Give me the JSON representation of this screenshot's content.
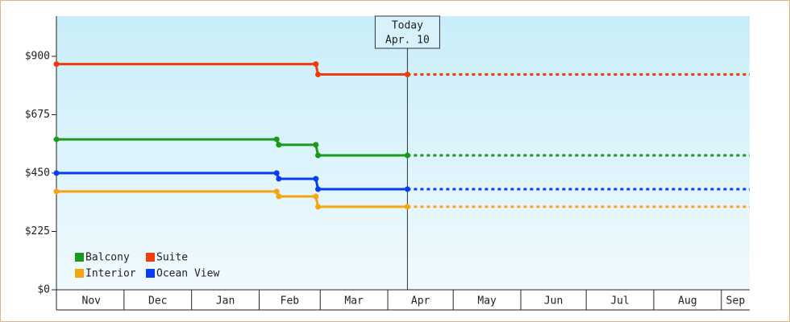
{
  "chart_data": {
    "type": "step-line",
    "x": [
      -1,
      100,
      101,
      118,
      119,
      160,
      317
    ],
    "xlim": [
      -1,
      317
    ],
    "xticks": [
      {
        "value": 0,
        "label": "Nov"
      },
      {
        "value": 30,
        "label": "Dec"
      },
      {
        "value": 61,
        "label": "Jan"
      },
      {
        "value": 92,
        "label": "Feb"
      },
      {
        "value": 120,
        "label": "Mar"
      },
      {
        "value": 151,
        "label": "Apr"
      },
      {
        "value": 181,
        "label": "May"
      },
      {
        "value": 212,
        "label": "Jun"
      },
      {
        "value": 242,
        "label": "Jul"
      },
      {
        "value": 273,
        "label": "Aug"
      },
      {
        "value": 304,
        "label": "Sep"
      }
    ],
    "ylim": [
      0,
      1055
    ],
    "yticks": [
      {
        "value": 0,
        "label": "$0"
      },
      {
        "value": 225,
        "label": "$225"
      },
      {
        "value": 450,
        "label": "$450"
      },
      {
        "value": 675,
        "label": "$675"
      },
      {
        "value": 900,
        "label": "$900"
      }
    ],
    "today": {
      "x": 160,
      "title": "Today",
      "label": "Apr. 10"
    },
    "series": [
      {
        "name": "Balcony",
        "color": "#1a9a1a",
        "values": [
          580,
          580,
          559,
          559,
          518,
          518,
          518
        ]
      },
      {
        "name": "Suite",
        "color": "#f03c0c",
        "values": [
          870,
          870,
          870,
          870,
          830,
          830,
          830
        ]
      },
      {
        "name": "Interior",
        "color": "#f5a50f",
        "values": [
          379,
          379,
          360,
          360,
          320,
          320,
          320
        ]
      },
      {
        "name": "Ocean View",
        "color": "#0a3cf5",
        "values": [
          450,
          450,
          428,
          428,
          388,
          388,
          388
        ]
      }
    ]
  }
}
